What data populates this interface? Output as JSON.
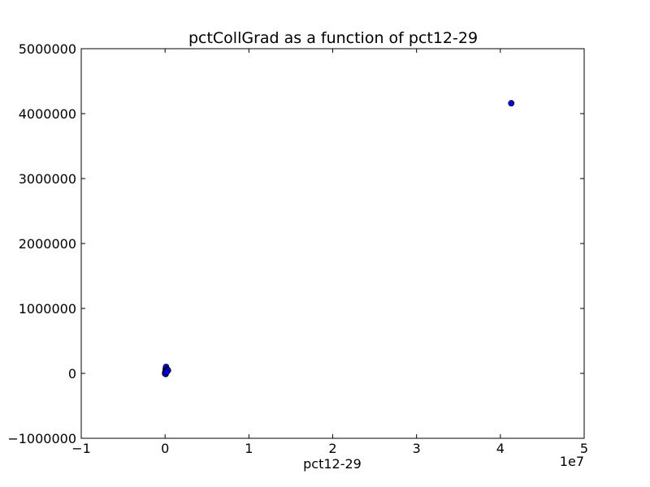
{
  "chart_data": {
    "type": "scatter",
    "title": "pctCollGrad as a function of pct12-29",
    "xlabel": "pct12-29",
    "ylabel": "",
    "x_offset_label": "1e7",
    "xlim": [
      -10000000,
      50000000
    ],
    "ylim": [
      -1000000,
      5000000
    ],
    "x_ticks": [
      -10000000,
      0,
      10000000,
      20000000,
      30000000,
      40000000,
      50000000
    ],
    "x_tick_labels": [
      "−1",
      "0",
      "1",
      "2",
      "3",
      "4",
      "5"
    ],
    "y_ticks": [
      -1000000,
      0,
      1000000,
      2000000,
      3000000,
      4000000,
      5000000
    ],
    "y_tick_labels": [
      "−1000000",
      "0",
      "1000000",
      "2000000",
      "3000000",
      "4000000",
      "5000000"
    ],
    "grid": false,
    "marker_color": "#0000ff",
    "marker_edge_color": "#000000",
    "points": [
      {
        "x": 0,
        "y": 0
      },
      {
        "x": 30000,
        "y": 20000
      },
      {
        "x": 60000,
        "y": 50000
      },
      {
        "x": 90000,
        "y": 80000
      },
      {
        "x": 120000,
        "y": 100000
      },
      {
        "x": 150000,
        "y": 30000
      },
      {
        "x": 200000,
        "y": 60000
      },
      {
        "x": 250000,
        "y": 40000
      },
      {
        "x": 300000,
        "y": 55000
      },
      {
        "x": 350000,
        "y": 45000
      },
      {
        "x": 40000,
        "y": 10000
      },
      {
        "x": 80000,
        "y": -10000
      },
      {
        "x": 10000,
        "y": -5000
      },
      {
        "x": 180000,
        "y": 20000
      },
      {
        "x": 41300000,
        "y": 4160000
      }
    ]
  }
}
